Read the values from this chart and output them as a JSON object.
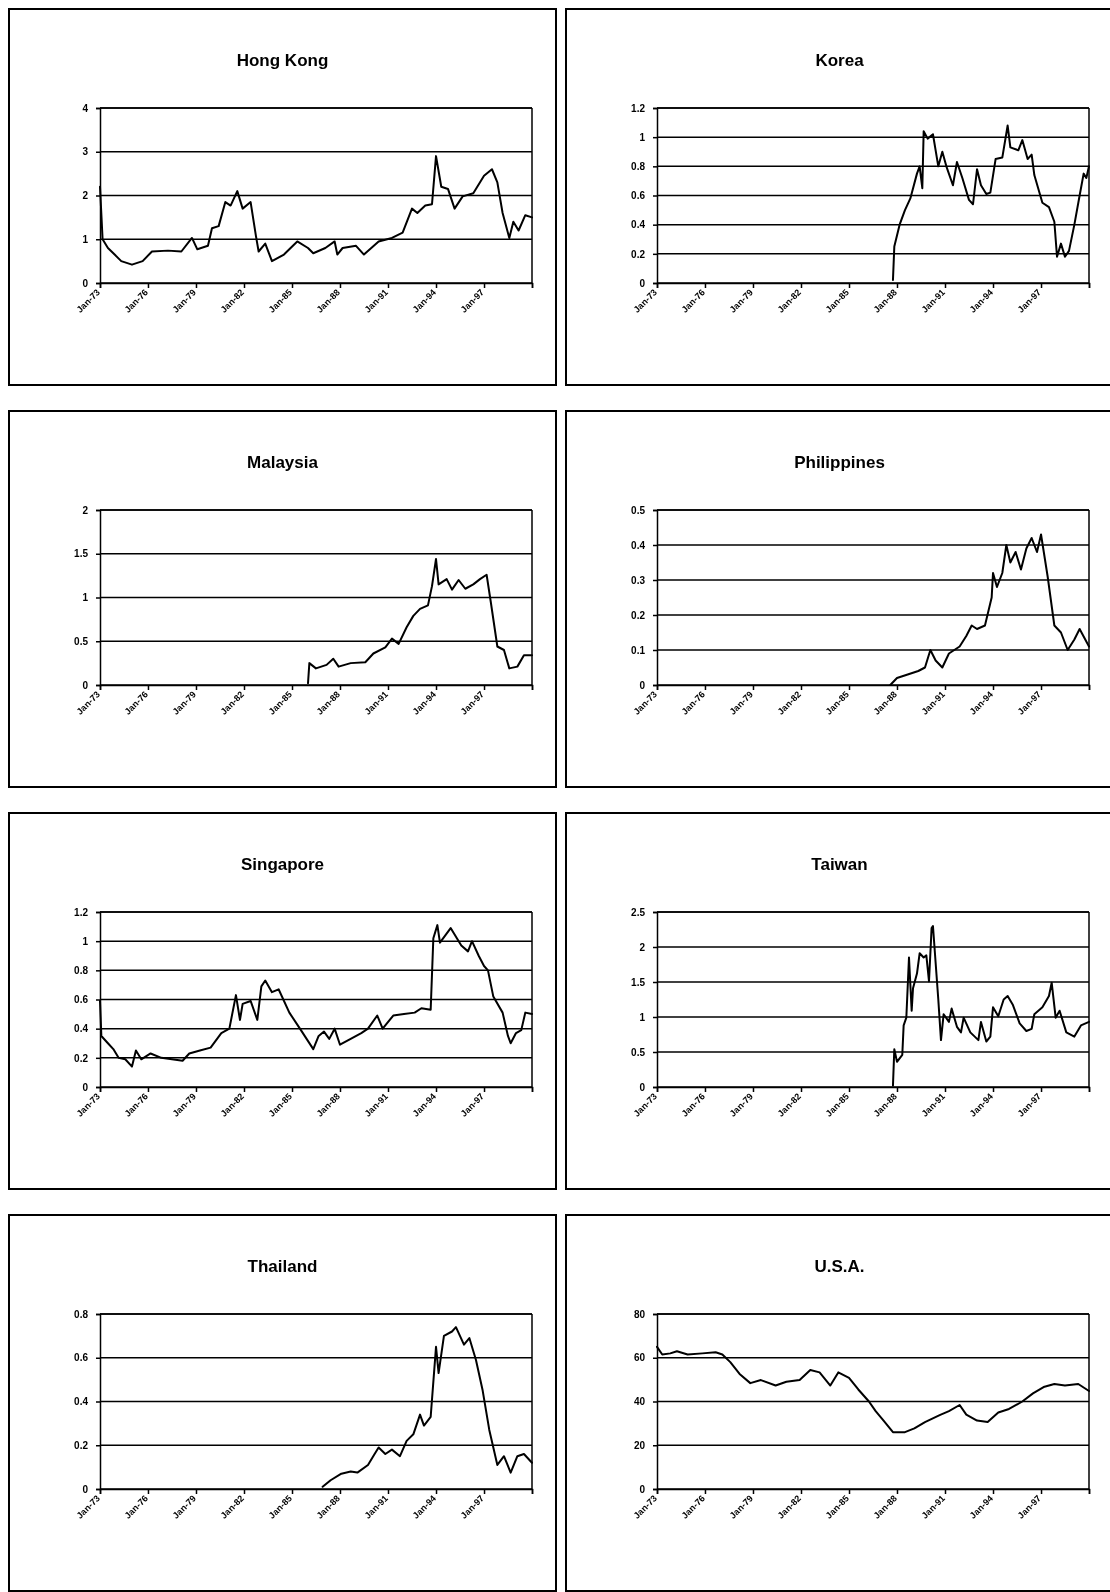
{
  "chart_data": [
    {
      "type": "line",
      "title": "Hong Kong",
      "color": "#000000",
      "grid": "y",
      "xlim": [
        "1973-01",
        "2000-01"
      ],
      "xticks": [
        {
          "value": "1973-01",
          "label": "Jan-73"
        },
        {
          "value": "1976-01",
          "label": "Jan-76"
        },
        {
          "value": "1979-01",
          "label": "Jan-79"
        },
        {
          "value": "1982-01",
          "label": "Jan-82"
        },
        {
          "value": "1985-01",
          "label": "Jan-85"
        },
        {
          "value": "1988-01",
          "label": "Jan-88"
        },
        {
          "value": "1991-01",
          "label": "Jan-91"
        },
        {
          "value": "1994-01",
          "label": "Jan-94"
        },
        {
          "value": "1997-01",
          "label": "Jan-97"
        },
        {
          "value": "2000-01",
          "label": null
        }
      ],
      "ylim": [
        0,
        4
      ],
      "yticks": [
        0,
        1,
        2,
        3,
        4
      ],
      "x": [
        "1973-01",
        "1973-03",
        "1973-07",
        "1973-12",
        "1974-05",
        "1975-01",
        "1975-09",
        "1976-04",
        "1977-04",
        "1978-02",
        "1978-10",
        "1979-02",
        "1979-10",
        "1980-01",
        "1980-06",
        "1980-11",
        "1981-03",
        "1981-08",
        "1981-12",
        "1982-06",
        "1982-10",
        "1982-12",
        "1983-05",
        "1983-10",
        "1984-07",
        "1985-05",
        "1986-01",
        "1986-05",
        "1987-02",
        "1987-09",
        "1987-11",
        "1988-03",
        "1989-01",
        "1989-07",
        "1990-06",
        "1991-04",
        "1991-12",
        "1992-07",
        "1992-11",
        "1993-05",
        "1993-10",
        "1994-01",
        "1994-05",
        "1994-10",
        "1995-03",
        "1995-09",
        "1996-05",
        "1997-01",
        "1997-07",
        "1997-11",
        "1998-03",
        "1998-08",
        "1998-11",
        "1999-03",
        "1999-08",
        "2000-01"
      ],
      "values": [
        2.2,
        1.0,
        0.8,
        0.65,
        0.5,
        0.42,
        0.5,
        0.72,
        0.74,
        0.72,
        1.03,
        0.77,
        0.85,
        1.25,
        1.3,
        1.85,
        1.77,
        2.1,
        1.7,
        1.85,
        1.07,
        0.72,
        0.9,
        0.5,
        0.65,
        0.95,
        0.8,
        0.68,
        0.8,
        0.95,
        0.65,
        0.8,
        0.85,
        0.65,
        0.95,
        1.03,
        1.15,
        1.7,
        1.6,
        1.77,
        1.8,
        2.9,
        2.2,
        2.15,
        1.7,
        1.98,
        2.05,
        2.45,
        2.6,
        2.3,
        1.6,
        1.03,
        1.4,
        1.2,
        1.55,
        1.5
      ]
    },
    {
      "type": "line",
      "title": "Korea",
      "color": "#000000",
      "grid": "y",
      "xlim": [
        "1973-01",
        "2000-01"
      ],
      "xticks": [
        {
          "value": "1973-01",
          "label": "Jan-73"
        },
        {
          "value": "1976-01",
          "label": "Jan-76"
        },
        {
          "value": "1979-01",
          "label": "Jan-79"
        },
        {
          "value": "1982-01",
          "label": "Jan-82"
        },
        {
          "value": "1985-01",
          "label": "Jan-85"
        },
        {
          "value": "1988-01",
          "label": "Jan-88"
        },
        {
          "value": "1991-01",
          "label": "Jan-91"
        },
        {
          "value": "1994-01",
          "label": "Jan-94"
        },
        {
          "value": "1997-01",
          "label": "Jan-97"
        },
        {
          "value": "2000-01",
          "label": null
        }
      ],
      "ylim": [
        0,
        1.2
      ],
      "yticks": [
        0,
        0.2,
        0.4,
        0.6,
        0.8,
        1,
        1.2
      ],
      "x": [
        "1987-10",
        "1987-11",
        "1988-03",
        "1988-07",
        "1988-11",
        "1989-04",
        "1989-06",
        "1989-08",
        "1989-09",
        "1989-12",
        "1990-04",
        "1990-08",
        "1990-11",
        "1991-02",
        "1991-07",
        "1991-10",
        "1992-02",
        "1992-07",
        "1992-10",
        "1993-01",
        "1993-04",
        "1993-08",
        "1993-11",
        "1994-03",
        "1994-08",
        "1994-12",
        "1995-02",
        "1995-08",
        "1995-11",
        "1996-03",
        "1996-06",
        "1996-08",
        "1997-02",
        "1997-07",
        "1997-11",
        "1998-01",
        "1998-04",
        "1998-07",
        "1998-10",
        "1999-02",
        "1999-06",
        "1999-09",
        "1999-11",
        "2000-01"
      ],
      "values": [
        0.02,
        0.25,
        0.4,
        0.5,
        0.58,
        0.75,
        0.8,
        0.65,
        1.04,
        0.99,
        1.02,
        0.8,
        0.9,
        0.8,
        0.67,
        0.83,
        0.72,
        0.57,
        0.54,
        0.78,
        0.67,
        0.61,
        0.62,
        0.85,
        0.86,
        1.08,
        0.93,
        0.91,
        0.98,
        0.85,
        0.88,
        0.74,
        0.55,
        0.52,
        0.42,
        0.18,
        0.27,
        0.18,
        0.22,
        0.4,
        0.6,
        0.75,
        0.72,
        0.8
      ]
    },
    {
      "type": "line",
      "title": "Malaysia",
      "color": "#000000",
      "grid": "y",
      "xlim": [
        "1973-01",
        "2000-01"
      ],
      "xticks": [
        {
          "value": "1973-01",
          "label": "Jan-73"
        },
        {
          "value": "1976-01",
          "label": "Jan-76"
        },
        {
          "value": "1979-01",
          "label": "Jan-79"
        },
        {
          "value": "1982-01",
          "label": "Jan-82"
        },
        {
          "value": "1985-01",
          "label": "Jan-85"
        },
        {
          "value": "1988-01",
          "label": "Jan-88"
        },
        {
          "value": "1991-01",
          "label": "Jan-91"
        },
        {
          "value": "1994-01",
          "label": "Jan-94"
        },
        {
          "value": "1997-01",
          "label": "Jan-97"
        },
        {
          "value": "2000-01",
          "label": null
        }
      ],
      "ylim": [
        0,
        2
      ],
      "yticks": [
        0,
        0.5,
        1,
        1.5,
        2
      ],
      "x": [
        "1986-01",
        "1986-02",
        "1986-07",
        "1987-03",
        "1987-08",
        "1987-12",
        "1988-09",
        "1989-08",
        "1990-02",
        "1990-11",
        "1991-04",
        "1991-09",
        "1992-03",
        "1992-08",
        "1993-01",
        "1993-07",
        "1993-10",
        "1994-01",
        "1994-03",
        "1994-09",
        "1995-01",
        "1995-06",
        "1995-11",
        "1996-05",
        "1996-10",
        "1997-03",
        "1997-06",
        "1997-11",
        "1998-04",
        "1998-08",
        "1999-02",
        "1999-07",
        "2000-01"
      ],
      "values": [
        0.02,
        0.25,
        0.19,
        0.23,
        0.3,
        0.21,
        0.25,
        0.26,
        0.36,
        0.43,
        0.53,
        0.47,
        0.66,
        0.79,
        0.87,
        0.91,
        1.13,
        1.44,
        1.15,
        1.21,
        1.09,
        1.2,
        1.1,
        1.15,
        1.21,
        1.26,
        0.96,
        0.44,
        0.4,
        0.19,
        0.21,
        0.34,
        0.34
      ]
    },
    {
      "type": "line",
      "title": "Philippines",
      "color": "#000000",
      "grid": "y",
      "xlim": [
        "1973-01",
        "2000-01"
      ],
      "xticks": [
        {
          "value": "1973-01",
          "label": "Jan-73"
        },
        {
          "value": "1976-01",
          "label": "Jan-76"
        },
        {
          "value": "1979-01",
          "label": "Jan-79"
        },
        {
          "value": "1982-01",
          "label": "Jan-82"
        },
        {
          "value": "1985-01",
          "label": "Jan-85"
        },
        {
          "value": "1988-01",
          "label": "Jan-88"
        },
        {
          "value": "1991-01",
          "label": "Jan-91"
        },
        {
          "value": "1994-01",
          "label": "Jan-94"
        },
        {
          "value": "1997-01",
          "label": "Jan-97"
        },
        {
          "value": "2000-01",
          "label": null
        }
      ],
      "ylim": [
        0,
        0.5
      ],
      "yticks": [
        0,
        0.1,
        0.2,
        0.3,
        0.4,
        0.5
      ],
      "x": [
        "1987-08",
        "1988-01",
        "1988-09",
        "1989-05",
        "1989-10",
        "1990-02",
        "1990-06",
        "1990-11",
        "1991-04",
        "1991-12",
        "1992-05",
        "1992-09",
        "1993-01",
        "1993-07",
        "1993-12",
        "1994-01",
        "1994-04",
        "1994-08",
        "1994-11",
        "1995-02",
        "1995-06",
        "1995-10",
        "1996-02",
        "1996-06",
        "1996-10",
        "1997-01",
        "1997-06",
        "1997-11",
        "1998-04",
        "1998-09",
        "1999-02",
        "1999-06",
        "2000-01"
      ],
      "values": [
        0.0,
        0.02,
        0.03,
        0.04,
        0.05,
        0.1,
        0.07,
        0.05,
        0.09,
        0.11,
        0.14,
        0.17,
        0.16,
        0.17,
        0.25,
        0.32,
        0.28,
        0.32,
        0.4,
        0.35,
        0.38,
        0.33,
        0.39,
        0.42,
        0.38,
        0.43,
        0.31,
        0.17,
        0.15,
        0.1,
        0.13,
        0.16,
        0.11
      ]
    },
    {
      "type": "line",
      "title": "Singapore",
      "color": "#000000",
      "grid": "y",
      "xlim": [
        "1973-01",
        "2000-01"
      ],
      "xticks": [
        {
          "value": "1973-01",
          "label": "Jan-73"
        },
        {
          "value": "1976-01",
          "label": "Jan-76"
        },
        {
          "value": "1979-01",
          "label": "Jan-79"
        },
        {
          "value": "1982-01",
          "label": "Jan-82"
        },
        {
          "value": "1985-01",
          "label": "Jan-85"
        },
        {
          "value": "1988-01",
          "label": "Jan-88"
        },
        {
          "value": "1991-01",
          "label": "Jan-91"
        },
        {
          "value": "1994-01",
          "label": "Jan-94"
        },
        {
          "value": "1997-01",
          "label": "Jan-97"
        },
        {
          "value": "2000-01",
          "label": null
        }
      ],
      "ylim": [
        0,
        1.2
      ],
      "yticks": [
        0,
        0.2,
        0.4,
        0.6,
        0.8,
        1,
        1.2
      ],
      "x": [
        "1973-01",
        "1973-02",
        "1973-07",
        "1973-11",
        "1974-03",
        "1974-08",
        "1975-01",
        "1975-04",
        "1975-08",
        "1976-03",
        "1976-11",
        "1977-07",
        "1978-03",
        "1978-08",
        "1979-04",
        "1979-12",
        "1980-08",
        "1981-02",
        "1981-07",
        "1981-10",
        "1981-12",
        "1982-06",
        "1982-11",
        "1983-02",
        "1983-05",
        "1983-10",
        "1984-03",
        "1984-11",
        "1985-07",
        "1986-05",
        "1986-09",
        "1987-01",
        "1987-05",
        "1987-09",
        "1988-01",
        "1988-09",
        "1989-05",
        "1989-10",
        "1990-05",
        "1990-09",
        "1991-05",
        "1992-01",
        "1992-09",
        "1993-02",
        "1993-09",
        "1993-11",
        "1994-02",
        "1994-04",
        "1994-12",
        "1995-08",
        "1996-01",
        "1996-04",
        "1996-09",
        "1997-01",
        "1997-04",
        "1997-08",
        "1998-03",
        "1998-07",
        "1998-09",
        "1999-01",
        "1999-05",
        "1999-08",
        "2000-01"
      ],
      "values": [
        0.59,
        0.35,
        0.3,
        0.26,
        0.2,
        0.19,
        0.14,
        0.25,
        0.19,
        0.23,
        0.2,
        0.19,
        0.18,
        0.23,
        0.25,
        0.27,
        0.37,
        0.4,
        0.63,
        0.46,
        0.57,
        0.59,
        0.46,
        0.69,
        0.73,
        0.65,
        0.67,
        0.51,
        0.4,
        0.26,
        0.35,
        0.38,
        0.33,
        0.4,
        0.29,
        0.33,
        0.37,
        0.4,
        0.49,
        0.4,
        0.49,
        0.5,
        0.51,
        0.54,
        0.53,
        1.02,
        1.11,
        0.99,
        1.09,
        0.97,
        0.93,
        1.0,
        0.9,
        0.83,
        0.8,
        0.62,
        0.51,
        0.35,
        0.3,
        0.37,
        0.39,
        0.51,
        0.5
      ]
    },
    {
      "type": "line",
      "title": "Taiwan",
      "color": "#000000",
      "grid": "y",
      "xlim": [
        "1973-01",
        "2000-01"
      ],
      "xticks": [
        {
          "value": "1973-01",
          "label": "Jan-73"
        },
        {
          "value": "1976-01",
          "label": "Jan-76"
        },
        {
          "value": "1979-01",
          "label": "Jan-79"
        },
        {
          "value": "1982-01",
          "label": "Jan-82"
        },
        {
          "value": "1985-01",
          "label": "Jan-85"
        },
        {
          "value": "1988-01",
          "label": "Jan-88"
        },
        {
          "value": "1991-01",
          "label": "Jan-91"
        },
        {
          "value": "1994-01",
          "label": "Jan-94"
        },
        {
          "value": "1997-01",
          "label": "Jan-97"
        },
        {
          "value": "2000-01",
          "label": null
        }
      ],
      "ylim": [
        0,
        2.5
      ],
      "yticks": [
        0,
        0.5,
        1,
        1.5,
        2,
        2.5
      ],
      "x": [
        "1987-10",
        "1987-11",
        "1988-01",
        "1988-05",
        "1988-06",
        "1988-08",
        "1988-10",
        "1988-12",
        "1989-01",
        "1989-04",
        "1989-06",
        "1989-09",
        "1989-11",
        "1990-01",
        "1990-03",
        "1990-04",
        "1990-08",
        "1990-10",
        "1990-12",
        "1991-04",
        "1991-06",
        "1991-10",
        "1992-01",
        "1992-03",
        "1992-08",
        "1993-02",
        "1993-04",
        "1993-08",
        "1993-11",
        "1994-01",
        "1994-05",
        "1994-09",
        "1994-12",
        "1995-04",
        "1995-09",
        "1996-02",
        "1996-06",
        "1996-08",
        "1997-02",
        "1997-07",
        "1997-09",
        "1997-12",
        "1998-03",
        "1998-08",
        "1999-02",
        "1999-07",
        "2000-01"
      ],
      "values": [
        0.02,
        0.54,
        0.36,
        0.46,
        0.88,
        0.99,
        1.85,
        1.09,
        1.41,
        1.62,
        1.91,
        1.85,
        1.88,
        1.51,
        2.27,
        2.3,
        1.25,
        0.67,
        1.04,
        0.93,
        1.12,
        0.86,
        0.78,
        0.99,
        0.78,
        0.67,
        0.93,
        0.65,
        0.72,
        1.14,
        1.01,
        1.25,
        1.3,
        1.17,
        0.91,
        0.8,
        0.83,
        1.04,
        1.14,
        1.3,
        1.49,
        0.99,
        1.09,
        0.78,
        0.72,
        0.88,
        0.93
      ]
    },
    {
      "type": "line",
      "title": "Thailand",
      "color": "#000000",
      "grid": "y",
      "xlim": [
        "1973-01",
        "2000-01"
      ],
      "xticks": [
        {
          "value": "1973-01",
          "label": "Jan-73"
        },
        {
          "value": "1976-01",
          "label": "Jan-76"
        },
        {
          "value": "1979-01",
          "label": "Jan-79"
        },
        {
          "value": "1982-01",
          "label": "Jan-82"
        },
        {
          "value": "1985-01",
          "label": "Jan-85"
        },
        {
          "value": "1988-01",
          "label": "Jan-88"
        },
        {
          "value": "1991-01",
          "label": "Jan-91"
        },
        {
          "value": "1994-01",
          "label": "Jan-94"
        },
        {
          "value": "1997-01",
          "label": "Jan-97"
        },
        {
          "value": "2000-01",
          "label": null
        }
      ],
      "ylim": [
        0,
        0.8
      ],
      "yticks": [
        0,
        0.2,
        0.4,
        0.6,
        0.8
      ],
      "x": [
        "1986-12",
        "1987-06",
        "1988-02",
        "1988-09",
        "1989-02",
        "1989-10",
        "1990-03",
        "1990-06",
        "1990-11",
        "1991-04",
        "1991-10",
        "1992-03",
        "1992-08",
        "1993-01",
        "1993-04",
        "1993-09",
        "1994-01",
        "1994-03",
        "1994-07",
        "1995-01",
        "1995-04",
        "1995-10",
        "1996-02",
        "1996-07",
        "1996-12",
        "1997-05",
        "1997-11",
        "1998-04",
        "1998-09",
        "1999-02",
        "1999-07",
        "2000-01"
      ],
      "values": [
        0.01,
        0.04,
        0.07,
        0.08,
        0.075,
        0.11,
        0.16,
        0.19,
        0.16,
        0.18,
        0.15,
        0.22,
        0.25,
        0.34,
        0.29,
        0.33,
        0.65,
        0.53,
        0.7,
        0.72,
        0.74,
        0.66,
        0.69,
        0.59,
        0.45,
        0.27,
        0.11,
        0.15,
        0.075,
        0.15,
        0.16,
        0.12
      ]
    },
    {
      "type": "line",
      "title": "U.S.A.",
      "color": "#000000",
      "grid": "y",
      "xlim": [
        "1973-01",
        "2000-01"
      ],
      "xticks": [
        {
          "value": "1973-01",
          "label": "Jan-73"
        },
        {
          "value": "1976-01",
          "label": "Jan-76"
        },
        {
          "value": "1979-01",
          "label": "Jan-79"
        },
        {
          "value": "1982-01",
          "label": "Jan-82"
        },
        {
          "value": "1985-01",
          "label": "Jan-85"
        },
        {
          "value": "1988-01",
          "label": "Jan-88"
        },
        {
          "value": "1991-01",
          "label": "Jan-91"
        },
        {
          "value": "1994-01",
          "label": "Jan-94"
        },
        {
          "value": "1997-01",
          "label": "Jan-97"
        },
        {
          "value": "2000-01",
          "label": null
        }
      ],
      "ylim": [
        0,
        80
      ],
      "yticks": [
        0,
        20,
        40,
        60,
        80
      ],
      "x": [
        "1973-01",
        "1973-05",
        "1973-11",
        "1974-04",
        "1974-12",
        "1975-11",
        "1976-09",
        "1977-02",
        "1977-08",
        "1978-03",
        "1978-11",
        "1979-07",
        "1980-06",
        "1981-02",
        "1981-12",
        "1982-08",
        "1983-03",
        "1983-11",
        "1984-05",
        "1985-01",
        "1985-08",
        "1986-04",
        "1986-09",
        "1987-03",
        "1987-10",
        "1988-07",
        "1989-02",
        "1989-10",
        "1990-09",
        "1991-04",
        "1991-12",
        "1992-05",
        "1993-01",
        "1993-09",
        "1994-05",
        "1995-01",
        "1995-11",
        "1996-07",
        "1997-03",
        "1997-11",
        "1998-07",
        "1999-05",
        "2000-01"
      ],
      "values": [
        65,
        61.5,
        62,
        63,
        61.5,
        62,
        62.5,
        61.5,
        58,
        52.6,
        48.4,
        49.8,
        47.3,
        49,
        49.8,
        54.4,
        53.3,
        47.3,
        53.3,
        50.8,
        45.5,
        40,
        35.6,
        31.3,
        26,
        26,
        27.7,
        30.6,
        33.8,
        35.6,
        38.4,
        34,
        31.3,
        30.6,
        35,
        36.6,
        40,
        43.7,
        46.6,
        48,
        47.3,
        48,
        44.8
      ]
    }
  ]
}
